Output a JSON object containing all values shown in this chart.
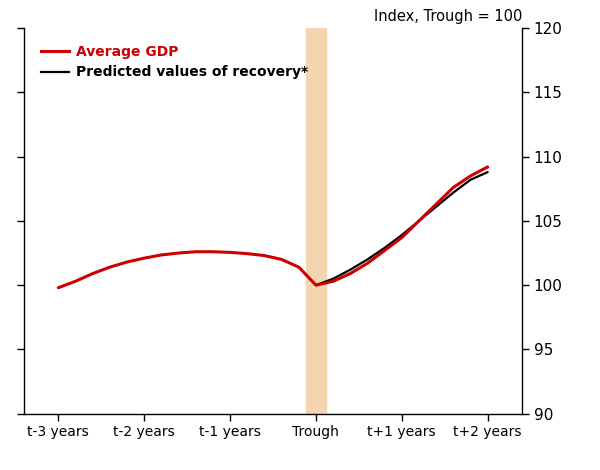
{
  "title_right": "Index, Trough = 100",
  "ylim": [
    90,
    120
  ],
  "yticks": [
    90,
    95,
    100,
    105,
    110,
    115,
    120
  ],
  "xlim": [
    -3.4,
    2.4
  ],
  "x_positions": [
    -3,
    -2,
    -1,
    0,
    1,
    2
  ],
  "x_labels": [
    "t-3 years",
    "t-2 years",
    "t-1 years",
    "Trough",
    "t+1 years",
    "t+2 years"
  ],
  "avg_gdp_x": [
    -3.0,
    -2.8,
    -2.6,
    -2.4,
    -2.2,
    -2.0,
    -1.8,
    -1.6,
    -1.4,
    -1.2,
    -1.0,
    -0.8,
    -0.6,
    -0.4,
    -0.2,
    0.0,
    0.2,
    0.4,
    0.6,
    0.8,
    1.0,
    1.2,
    1.4,
    1.6,
    1.8,
    2.0
  ],
  "avg_gdp_y": [
    99.8,
    100.3,
    100.9,
    101.4,
    101.8,
    102.1,
    102.35,
    102.5,
    102.6,
    102.6,
    102.55,
    102.45,
    102.3,
    102.0,
    101.4,
    100.0,
    100.3,
    100.9,
    101.7,
    102.7,
    103.7,
    105.0,
    106.3,
    107.6,
    108.5,
    109.2
  ],
  "predicted_x": [
    0.0,
    0.2,
    0.4,
    0.6,
    0.8,
    1.0,
    1.2,
    1.4,
    1.6,
    1.8,
    2.0
  ],
  "predicted_y": [
    100.0,
    100.5,
    101.2,
    102.0,
    102.9,
    103.9,
    105.0,
    106.1,
    107.2,
    108.2,
    108.8
  ],
  "avg_gdp_color": "#cc0000",
  "predicted_color": "#000000",
  "avg_gdp_linewidth": 2.2,
  "predicted_linewidth": 1.6,
  "shading_color": "#f5d5b0",
  "shading_alpha": 1.0,
  "shading_xmin": -0.12,
  "shading_xmax": 0.12,
  "legend_avg": "Average GDP",
  "legend_avg_color": "#cc0000",
  "legend_pred": "Predicted values of recovery*",
  "legend_pred_color": "#000000",
  "background_color": "#ffffff",
  "figsize": [
    6.0,
    4.7
  ],
  "dpi": 100
}
